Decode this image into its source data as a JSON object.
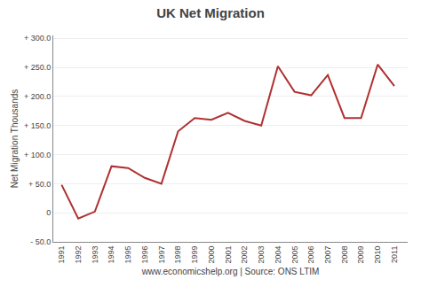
{
  "chart_data": {
    "type": "line",
    "title": "UK Net Migration",
    "xlabel": "www.economicshelp.org | Source: ONS LTIM",
    "ylabel": "Net Migration Thousands",
    "x": [
      1991,
      1992,
      1993,
      1994,
      1995,
      1996,
      1997,
      1998,
      1999,
      2000,
      2001,
      2002,
      2003,
      2004,
      2005,
      2006,
      2007,
      2008,
      2009,
      2010,
      2011
    ],
    "values": [
      48,
      -10,
      2,
      80,
      77,
      60,
      50,
      140,
      163,
      160,
      172,
      158,
      150,
      252,
      208,
      202,
      237,
      163,
      163,
      255,
      218
    ],
    "color": "#b03030",
    "xlim": [
      1990.5,
      2011.8
    ],
    "xticks": [
      1991,
      1992,
      1993,
      1994,
      1995,
      1996,
      1997,
      1998,
      1999,
      2000,
      2001,
      2002,
      2003,
      2004,
      2005,
      2006,
      2007,
      2008,
      2009,
      2010,
      2011
    ],
    "ylim": [
      -50,
      305
    ],
    "yticks": [
      {
        "value": -50,
        "label": "- 50.0"
      },
      0,
      {
        "value": 50,
        "label": "+ 50.0"
      },
      {
        "value": 100,
        "label": "+ 100.0"
      },
      {
        "value": 150,
        "label": "+ 150.0"
      },
      {
        "value": 200,
        "label": "+ 200.0"
      },
      {
        "value": 250,
        "label": "+ 250.0"
      },
      {
        "value": 300,
        "label": "+ 300.0"
      }
    ],
    "grid": "y"
  }
}
